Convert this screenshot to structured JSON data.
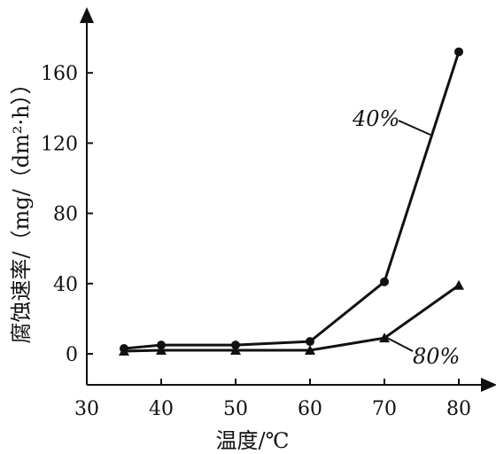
{
  "chart_data": {
    "type": "line",
    "xlabel": "温度/℃",
    "ylabel": "腐蚀速率/（mg/（dm²·h））",
    "xlim": [
      30,
      80
    ],
    "ylim": [
      0,
      180
    ],
    "xticks": [
      30,
      40,
      50,
      60,
      70,
      80
    ],
    "yticks": [
      0,
      40,
      80,
      120,
      160
    ],
    "grid": false,
    "series": [
      {
        "name": "40%",
        "marker": "circle",
        "x": [
          35,
          40,
          50,
          60,
          70,
          80
        ],
        "y": [
          3,
          5,
          5,
          7,
          41,
          172
        ]
      },
      {
        "name": "80%",
        "marker": "triangle",
        "x": [
          35,
          40,
          50,
          60,
          70,
          80
        ],
        "y": [
          1.5,
          2,
          2,
          2,
          9,
          39
        ]
      }
    ]
  }
}
